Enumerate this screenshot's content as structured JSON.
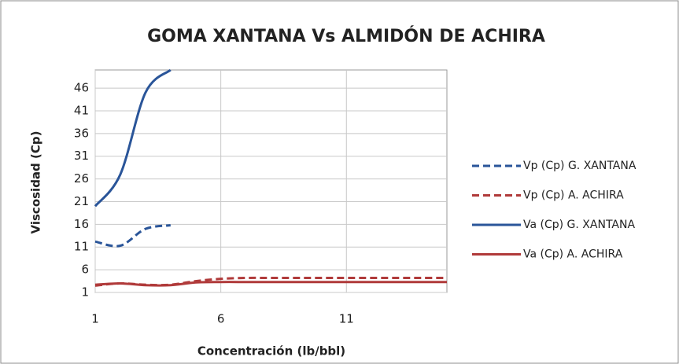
{
  "chart_data": {
    "type": "line",
    "title": "GOMA XANTANA Vs ALMIDÓN DE ACHIRA",
    "x_label": "Concentración (lb/bbl)",
    "y_label": "Viscosidad (Cp)",
    "x": [
      1,
      2,
      3,
      4,
      5,
      6,
      7,
      8,
      9,
      10,
      11,
      12,
      13,
      14,
      15
    ],
    "series": [
      {
        "name": "Vp (Cp) G. XANTANA",
        "color": "#2a5599",
        "dash": true,
        "values": [
          12.2,
          11.3,
          15,
          15.8,
          null,
          null,
          null,
          null,
          null,
          null,
          null,
          null,
          null,
          null,
          null
        ]
      },
      {
        "name": "Vp (Cp) A. ACHIRA",
        "color": "#b03a3a",
        "dash": true,
        "values": [
          2.5,
          3,
          2.7,
          2.7,
          3.5,
          4,
          4.2,
          4.2,
          4.2,
          4.2,
          4.2,
          4.2,
          4.2,
          4.2,
          4.2
        ]
      },
      {
        "name": "Va (Cp) G. XANTANA",
        "color": "#2a5599",
        "dash": false,
        "values": [
          20,
          27,
          45,
          50,
          null,
          null,
          null,
          null,
          null,
          null,
          null,
          null,
          null,
          null,
          null
        ]
      },
      {
        "name": "Va (Cp) A. ACHIRA",
        "color": "#b03a3a",
        "dash": false,
        "values": [
          2.7,
          3,
          2.6,
          2.6,
          3.2,
          3.3,
          3.3,
          3.3,
          3.3,
          3.3,
          3.3,
          3.3,
          3.3,
          3.3,
          3.3
        ]
      }
    ],
    "xlim": [
      1,
      15
    ],
    "xticks": [
      1,
      6,
      11
    ],
    "ylim": [
      1,
      50
    ],
    "yticks": [
      1,
      6,
      11,
      16,
      21,
      26,
      31,
      36,
      41,
      46
    ],
    "grid": true,
    "legend": "right"
  }
}
